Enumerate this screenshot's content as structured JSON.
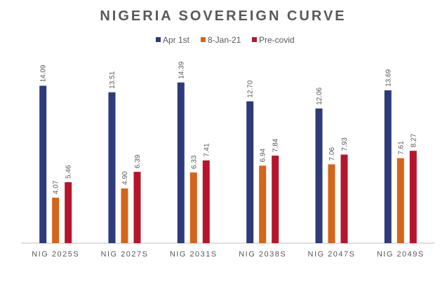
{
  "chart_data": {
    "type": "bar",
    "title": "NIGERIA SOVEREIGN CURVE",
    "categories": [
      "NIG 2025S",
      "NIG 2027S",
      "NIG 2031S",
      "NIG 2038S",
      "NIG 2047S",
      "NIG 2049S"
    ],
    "series": [
      {
        "name": "Apr 1st",
        "color": "#2e3a7a",
        "values": [
          14.09,
          13.51,
          14.39,
          12.7,
          12.06,
          13.69
        ],
        "labels": [
          "14.09",
          "13.51",
          "14.39",
          "12.70",
          "12.06",
          "13.69"
        ]
      },
      {
        "name": "8-Jan-21",
        "color": "#d4651a",
        "values": [
          4.07,
          4.9,
          6.33,
          6.94,
          7.06,
          7.61
        ],
        "labels": [
          "4.07",
          "4.90",
          "6.33",
          "6.94",
          "7.06",
          "7.61"
        ]
      },
      {
        "name": "Pre-covid",
        "color": "#b5162b",
        "values": [
          5.46,
          6.39,
          7.41,
          7.84,
          7.93,
          8.27
        ],
        "labels": [
          "5.46",
          "6.39",
          "7.41",
          "7.84",
          "7.93",
          "8.27"
        ]
      }
    ],
    "ylim": [
      0,
      16
    ],
    "grid": false,
    "legend_position": "top-center",
    "data_labels": "above-rotated"
  }
}
